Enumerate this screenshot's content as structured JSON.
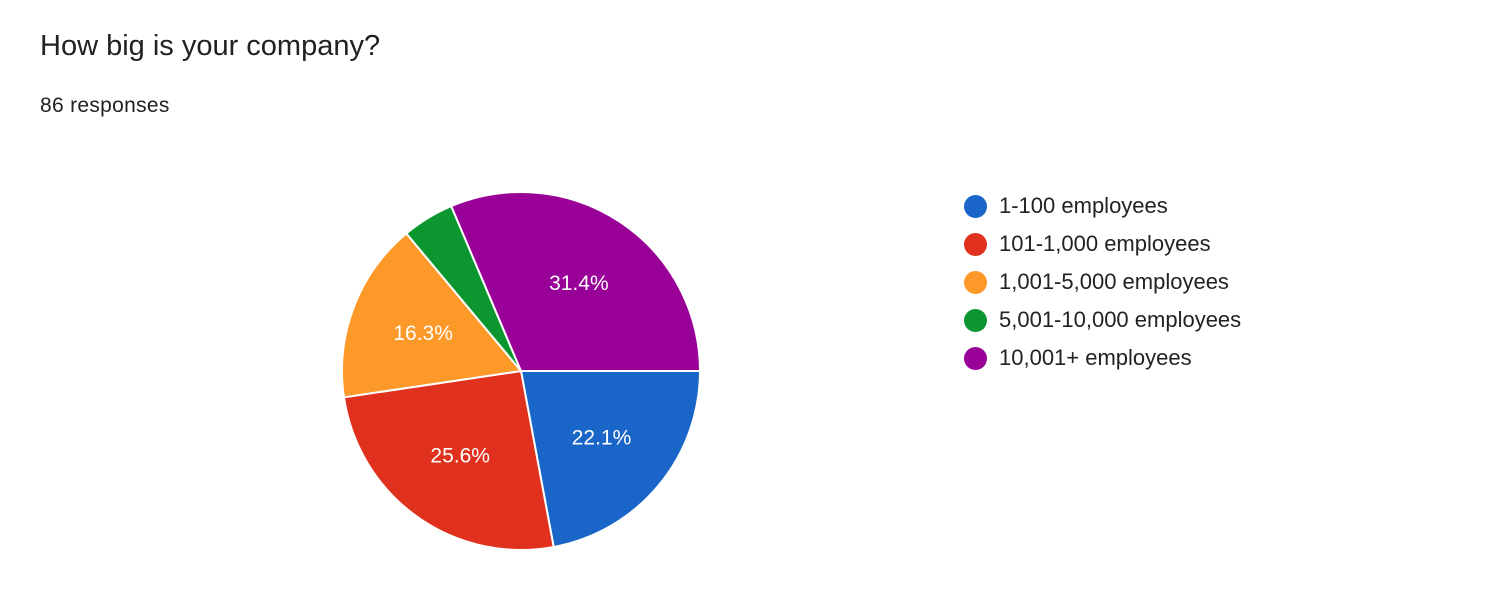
{
  "question": {
    "title": "How big is your company?",
    "responses": "86 responses"
  },
  "chart_data": {
    "type": "pie",
    "categories": [
      "1-100 employees",
      "101-1,000 employees",
      "1,001-5,000 employees",
      "5,001-10,000 employees",
      "10,001+ employees"
    ],
    "values": [
      22.1,
      25.6,
      16.3,
      4.7,
      31.4
    ],
    "labels": [
      "22.1%",
      "25.6%",
      "16.3%",
      "",
      "31.4%"
    ],
    "colors": [
      "#1a66c8",
      "#e0311e",
      "#fc9928",
      "#0b9630",
      "#990098"
    ],
    "legend_position": "right"
  }
}
